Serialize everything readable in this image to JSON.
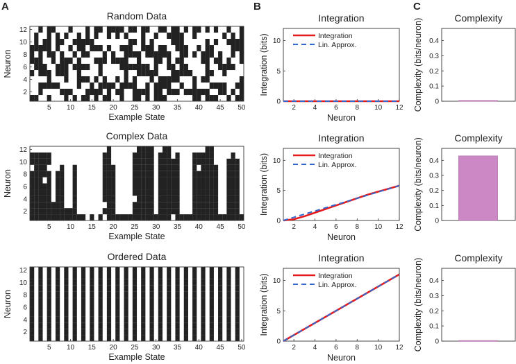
{
  "panel_letters": [
    "A",
    "B",
    "C"
  ],
  "colors": {
    "black": "#222222",
    "integration": "#e41a1c",
    "approx": "#3366cc",
    "bar": "#cc88c4",
    "bar_edge": "#a866a0"
  },
  "chart_data": [
    {
      "type": "heatmap",
      "id": "random-data",
      "title": "Random Data",
      "xlabel": "Example State",
      "ylabel": "Neuron",
      "x_ticks": [
        5,
        10,
        15,
        20,
        25,
        30,
        35,
        40,
        45,
        50
      ],
      "y_ticks": [
        2,
        4,
        6,
        8,
        10,
        12
      ],
      "n_states": 50,
      "n_neurons": 12,
      "pattern": "random",
      "seed": 7
    },
    {
      "type": "heatmap",
      "id": "complex-data",
      "title": "Complex Data",
      "xlabel": "Example State",
      "ylabel": "Neuron",
      "x_ticks": [
        5,
        10,
        15,
        20,
        25,
        30,
        35,
        40,
        45,
        50
      ],
      "y_ticks": [
        2,
        4,
        6,
        8,
        10,
        12
      ],
      "n_states": 50,
      "n_neurons": 12,
      "pattern": "complex",
      "seed": 3
    },
    {
      "type": "heatmap",
      "id": "ordered-data",
      "title": "Ordered Data",
      "xlabel": "Example State",
      "ylabel": "Neuron",
      "x_ticks": [
        5,
        10,
        15,
        20,
        25,
        30,
        35,
        40,
        45,
        50
      ],
      "y_ticks": [
        2,
        4,
        6,
        8,
        10,
        12
      ],
      "n_states": 50,
      "n_neurons": 12,
      "pattern": "ordered"
    },
    {
      "type": "line",
      "id": "integration-random",
      "title": "Integration",
      "xlabel": "Neuron",
      "ylabel": "Integration (bits)",
      "xlim": [
        1,
        12
      ],
      "ylim": [
        0,
        12
      ],
      "x_ticks": [
        2,
        4,
        6,
        8,
        10,
        12
      ],
      "y_ticks": [
        0,
        5,
        10
      ],
      "x": [
        1,
        2,
        3,
        4,
        5,
        6,
        7,
        8,
        9,
        10,
        11,
        12
      ],
      "series": [
        {
          "name": "Integration",
          "values": [
            0,
            0,
            0,
            0,
            0,
            0,
            0,
            0,
            0,
            0,
            0,
            0
          ]
        },
        {
          "name": "Lin. Approx.",
          "values": [
            0,
            0,
            0,
            0,
            0,
            0,
            0,
            0,
            0,
            0,
            0,
            0
          ]
        }
      ],
      "legend": "top-right"
    },
    {
      "type": "line",
      "id": "integration-complex",
      "title": "Integration",
      "xlabel": "Neuron",
      "ylabel": "Integration (bits)",
      "xlim": [
        1,
        12
      ],
      "ylim": [
        0,
        12
      ],
      "x_ticks": [
        2,
        4,
        6,
        8,
        10,
        12
      ],
      "y_ticks": [
        0,
        5,
        10
      ],
      "x": [
        1,
        2,
        3,
        4,
        5,
        6,
        7,
        8,
        9,
        10,
        11,
        12
      ],
      "series": [
        {
          "name": "Integration",
          "values": [
            0,
            0.2,
            0.7,
            1.3,
            1.9,
            2.5,
            3.1,
            3.7,
            4.3,
            4.8,
            5.3,
            5.8
          ]
        },
        {
          "name": "Lin. Approx.",
          "values": [
            0,
            0.53,
            1.05,
            1.58,
            2.11,
            2.64,
            3.16,
            3.69,
            4.22,
            4.75,
            5.27,
            5.8
          ]
        }
      ],
      "legend": "top-right"
    },
    {
      "type": "line",
      "id": "integration-ordered",
      "title": "Integration",
      "xlabel": "Neuron",
      "ylabel": "Integration (bits)",
      "xlim": [
        1,
        12
      ],
      "ylim": [
        0,
        12
      ],
      "x_ticks": [
        2,
        4,
        6,
        8,
        10,
        12
      ],
      "y_ticks": [
        0,
        5,
        10
      ],
      "x": [
        1,
        2,
        3,
        4,
        5,
        6,
        7,
        8,
        9,
        10,
        11,
        12
      ],
      "series": [
        {
          "name": "Integration",
          "values": [
            0,
            1,
            2,
            3,
            4,
            5,
            6,
            7,
            8,
            9,
            10,
            11
          ]
        },
        {
          "name": "Lin. Approx.",
          "values": [
            0,
            1,
            2,
            3,
            4,
            5,
            6,
            7,
            8,
            9,
            10,
            11
          ]
        }
      ],
      "legend": "top-right"
    },
    {
      "type": "bar",
      "id": "complexity-random",
      "title": "Complexity",
      "ylabel": "Complexity (bits/neuron)",
      "ylim": [
        0,
        0.48
      ],
      "y_ticks": [
        0,
        0.1,
        0.2,
        0.3,
        0.4
      ],
      "y_tick_labels": [
        "0",
        "0.1",
        "0.2",
        "0.3",
        "0.4"
      ],
      "values": [
        0.005
      ]
    },
    {
      "type": "bar",
      "id": "complexity-complex",
      "title": "Complexity",
      "ylabel": "Complexity (bits/neuron)",
      "ylim": [
        0,
        0.48
      ],
      "y_ticks": [
        0,
        0.1,
        0.2,
        0.3,
        0.4
      ],
      "y_tick_labels": [
        "0",
        "0.1",
        "0.2",
        "0.3",
        "0.4"
      ],
      "values": [
        0.43
      ]
    },
    {
      "type": "bar",
      "id": "complexity-ordered",
      "title": "Complexity",
      "ylabel": "Complexity (bits/neuron)",
      "ylim": [
        0,
        0.48
      ],
      "y_ticks": [
        0,
        0.1,
        0.2,
        0.3,
        0.4
      ],
      "y_tick_labels": [
        "0",
        "0.1",
        "0.2",
        "0.3",
        "0.4"
      ],
      "values": [
        0.004
      ]
    }
  ]
}
